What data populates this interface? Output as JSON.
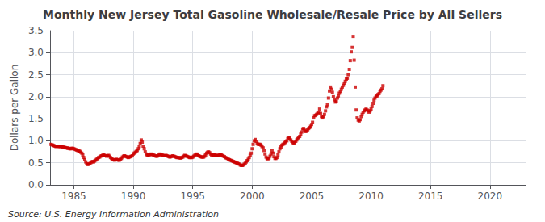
{
  "chart_data": {
    "type": "scatter",
    "title": "Monthly New Jersey Total Gasoline Wholesale/Resale Price by All Sellers",
    "ylabel": "Dollars per Gallon",
    "annotations": [
      "Source: U.S. Energy Information Administration"
    ],
    "color": "#CC0000",
    "marker": "square",
    "grid": true,
    "xlim": [
      1983,
      2023
    ],
    "xticks": [
      1985,
      1990,
      1995,
      2000,
      2005,
      2010,
      2015,
      2020
    ],
    "ylim": [
      0.0,
      3.5
    ],
    "yticks": [
      {
        "value": 0.0,
        "label": "0.0"
      },
      0.5,
      {
        "value": 1.0,
        "label": "1.0"
      },
      1.5,
      {
        "value": 2.0,
        "label": "2.0"
      },
      2.5,
      {
        "value": 3.0,
        "label": "3.0"
      },
      3.5
    ],
    "x": [
      1983.08,
      1983.17,
      1983.25,
      1983.33,
      1983.42,
      1983.5,
      1983.58,
      1983.67,
      1983.75,
      1983.83,
      1983.92,
      1984.0,
      1984.08,
      1984.17,
      1984.25,
      1984.33,
      1984.42,
      1984.5,
      1984.58,
      1984.67,
      1984.75,
      1984.83,
      1984.92,
      1985.0,
      1985.08,
      1985.17,
      1985.25,
      1985.33,
      1985.42,
      1985.5,
      1985.58,
      1985.67,
      1985.75,
      1985.83,
      1985.92,
      1986.0,
      1986.08,
      1986.17,
      1986.25,
      1986.33,
      1986.42,
      1986.5,
      1986.58,
      1986.67,
      1986.75,
      1986.83,
      1986.92,
      1987.0,
      1987.08,
      1987.17,
      1987.25,
      1987.33,
      1987.42,
      1987.5,
      1987.58,
      1987.67,
      1987.75,
      1987.83,
      1987.92,
      1988.0,
      1988.08,
      1988.17,
      1988.25,
      1988.33,
      1988.42,
      1988.5,
      1988.58,
      1988.67,
      1988.75,
      1988.83,
      1988.92,
      1989.0,
      1989.08,
      1989.17,
      1989.25,
      1989.33,
      1989.42,
      1989.5,
      1989.58,
      1989.67,
      1989.75,
      1989.83,
      1989.92,
      1990.0,
      1990.08,
      1990.17,
      1990.25,
      1990.33,
      1990.42,
      1990.5,
      1990.58,
      1990.67,
      1990.75,
      1990.83,
      1990.92,
      1991.0,
      1991.08,
      1991.17,
      1991.25,
      1991.33,
      1991.42,
      1991.5,
      1991.58,
      1991.67,
      1991.75,
      1991.83,
      1991.92,
      1992.0,
      1992.08,
      1992.17,
      1992.25,
      1992.33,
      1992.42,
      1992.5,
      1992.58,
      1992.67,
      1992.75,
      1992.83,
      1992.92,
      1993.0,
      1993.08,
      1993.17,
      1993.25,
      1993.33,
      1993.42,
      1993.5,
      1993.58,
      1993.67,
      1993.75,
      1993.83,
      1993.92,
      1994.0,
      1994.08,
      1994.17,
      1994.25,
      1994.33,
      1994.42,
      1994.5,
      1994.58,
      1994.67,
      1994.75,
      1994.83,
      1994.92,
      1995.0,
      1995.08,
      1995.17,
      1995.25,
      1995.33,
      1995.42,
      1995.5,
      1995.58,
      1995.67,
      1995.75,
      1995.83,
      1995.92,
      1996.0,
      1996.08,
      1996.17,
      1996.25,
      1996.33,
      1996.42,
      1996.5,
      1996.58,
      1996.67,
      1996.75,
      1996.83,
      1996.92,
      1997.0,
      1997.08,
      1997.17,
      1997.25,
      1997.33,
      1997.42,
      1997.5,
      1997.58,
      1997.67,
      1997.75,
      1997.83,
      1997.92,
      1998.0,
      1998.08,
      1998.17,
      1998.25,
      1998.33,
      1998.42,
      1998.5,
      1998.58,
      1998.67,
      1998.75,
      1998.83,
      1998.92,
      1999.0,
      1999.08,
      1999.17,
      1999.25,
      1999.33,
      1999.42,
      1999.5,
      1999.58,
      1999.67,
      1999.75,
      1999.83,
      1999.92,
      2000.0,
      2000.08,
      2000.17,
      2000.25,
      2000.33,
      2000.42,
      2000.5,
      2000.58,
      2000.67,
      2000.75,
      2000.83,
      2000.92,
      2001.0,
      2001.08,
      2001.17,
      2001.25,
      2001.33,
      2001.42,
      2001.5,
      2001.58,
      2001.67,
      2001.75,
      2001.83,
      2001.92,
      2002.0,
      2002.08,
      2002.17,
      2002.25,
      2002.33,
      2002.42,
      2002.5,
      2002.58,
      2002.67,
      2002.75,
      2002.83,
      2002.92,
      2003.0,
      2003.08,
      2003.17,
      2003.25,
      2003.33,
      2003.42,
      2003.5,
      2003.58,
      2003.67,
      2003.75,
      2003.83,
      2003.92,
      2004.0,
      2004.08,
      2004.17,
      2004.25,
      2004.33,
      2004.42,
      2004.5,
      2004.58,
      2004.67,
      2004.75,
      2004.83,
      2004.92,
      2005.0,
      2005.08,
      2005.17,
      2005.25,
      2005.33,
      2005.42,
      2005.5,
      2005.58,
      2005.67,
      2005.75,
      2005.83,
      2005.92,
      2006.0,
      2006.08,
      2006.17,
      2006.25,
      2006.33,
      2006.42,
      2006.5,
      2006.58,
      2006.67,
      2006.75,
      2006.83,
      2006.92,
      2007.0,
      2007.08,
      2007.17,
      2007.25,
      2007.33,
      2007.42,
      2007.5,
      2007.58,
      2007.67,
      2007.75,
      2007.83,
      2007.92,
      2008.0,
      2008.08,
      2008.17,
      2008.25,
      2008.33,
      2008.42,
      2008.5,
      2008.58,
      2008.67,
      2008.75,
      2008.83,
      2008.92,
      2009.0,
      2009.08,
      2009.17,
      2009.25,
      2009.33,
      2009.42,
      2009.5,
      2009.58,
      2009.67,
      2009.75,
      2009.83,
      2009.92,
      2010.0,
      2010.08,
      2010.17,
      2010.25,
      2010.33,
      2010.42,
      2010.5,
      2010.58,
      2010.67,
      2010.75,
      2010.83,
      2010.92,
      2011.0
    ],
    "values": [
      0.92,
      0.91,
      0.9,
      0.89,
      0.88,
      0.87,
      0.88,
      0.87,
      0.88,
      0.87,
      0.87,
      0.87,
      0.86,
      0.85,
      0.85,
      0.84,
      0.84,
      0.83,
      0.83,
      0.82,
      0.82,
      0.83,
      0.83,
      0.82,
      0.81,
      0.8,
      0.79,
      0.78,
      0.77,
      0.76,
      0.74,
      0.72,
      0.68,
      0.62,
      0.57,
      0.52,
      0.48,
      0.46,
      0.47,
      0.48,
      0.5,
      0.52,
      0.53,
      0.52,
      0.54,
      0.56,
      0.58,
      0.6,
      0.62,
      0.63,
      0.65,
      0.66,
      0.67,
      0.68,
      0.67,
      0.66,
      0.65,
      0.66,
      0.67,
      0.65,
      0.62,
      0.6,
      0.58,
      0.57,
      0.56,
      0.57,
      0.58,
      0.57,
      0.56,
      0.56,
      0.57,
      0.6,
      0.63,
      0.65,
      0.66,
      0.65,
      0.64,
      0.63,
      0.62,
      0.63,
      0.64,
      0.65,
      0.66,
      0.7,
      0.72,
      0.74,
      0.76,
      0.78,
      0.82,
      0.87,
      0.94,
      1.02,
      0.97,
      0.88,
      0.82,
      0.75,
      0.7,
      0.67,
      0.68,
      0.68,
      0.69,
      0.7,
      0.69,
      0.68,
      0.67,
      0.66,
      0.65,
      0.65,
      0.66,
      0.68,
      0.7,
      0.69,
      0.68,
      0.67,
      0.66,
      0.66,
      0.67,
      0.66,
      0.65,
      0.64,
      0.63,
      0.64,
      0.65,
      0.66,
      0.65,
      0.64,
      0.63,
      0.62,
      0.62,
      0.62,
      0.61,
      0.61,
      0.62,
      0.63,
      0.65,
      0.67,
      0.66,
      0.65,
      0.64,
      0.63,
      0.62,
      0.62,
      0.62,
      0.63,
      0.65,
      0.67,
      0.69,
      0.7,
      0.68,
      0.66,
      0.65,
      0.64,
      0.63,
      0.63,
      0.63,
      0.65,
      0.68,
      0.72,
      0.74,
      0.75,
      0.73,
      0.7,
      0.68,
      0.67,
      0.68,
      0.68,
      0.67,
      0.67,
      0.66,
      0.67,
      0.68,
      0.69,
      0.68,
      0.66,
      0.65,
      0.64,
      0.62,
      0.61,
      0.6,
      0.58,
      0.57,
      0.56,
      0.55,
      0.54,
      0.53,
      0.52,
      0.51,
      0.5,
      0.49,
      0.48,
      0.47,
      0.45,
      0.44,
      0.44,
      0.45,
      0.47,
      0.49,
      0.52,
      0.55,
      0.58,
      0.62,
      0.67,
      0.72,
      0.82,
      0.92,
      1.0,
      1.03,
      0.99,
      0.94,
      0.92,
      0.92,
      0.92,
      0.9,
      0.87,
      0.84,
      0.78,
      0.7,
      0.63,
      0.6,
      0.59,
      0.61,
      0.65,
      0.7,
      0.77,
      0.72,
      0.64,
      0.6,
      0.6,
      0.62,
      0.68,
      0.75,
      0.82,
      0.86,
      0.9,
      0.92,
      0.93,
      0.96,
      0.98,
      1.0,
      1.05,
      1.08,
      1.06,
      1.02,
      0.99,
      0.96,
      0.95,
      0.96,
      0.99,
      1.02,
      1.05,
      1.08,
      1.1,
      1.15,
      1.2,
      1.27,
      1.28,
      1.24,
      1.21,
      1.22,
      1.25,
      1.28,
      1.3,
      1.33,
      1.37,
      1.42,
      1.52,
      1.57,
      1.58,
      1.6,
      1.62,
      1.65,
      1.72,
      1.62,
      1.55,
      1.52,
      1.55,
      1.6,
      1.68,
      1.77,
      1.82,
      1.97,
      2.13,
      2.22,
      2.17,
      2.1,
      2.0,
      1.93,
      1.88,
      1.9,
      1.97,
      2.02,
      2.08,
      2.12,
      2.17,
      2.22,
      2.26,
      2.31,
      2.35,
      2.4,
      2.42,
      2.5,
      2.62,
      2.82,
      3.02,
      3.12,
      3.37,
      2.83,
      2.22,
      1.7,
      1.52,
      1.47,
      1.45,
      1.48,
      1.55,
      1.6,
      1.65,
      1.68,
      1.7,
      1.72,
      1.7,
      1.68,
      1.65,
      1.68,
      1.72,
      1.78,
      1.85,
      1.92,
      1.97,
      2.0,
      2.02,
      2.05,
      2.07,
      2.12,
      2.15,
      2.18,
      2.25
    ]
  }
}
